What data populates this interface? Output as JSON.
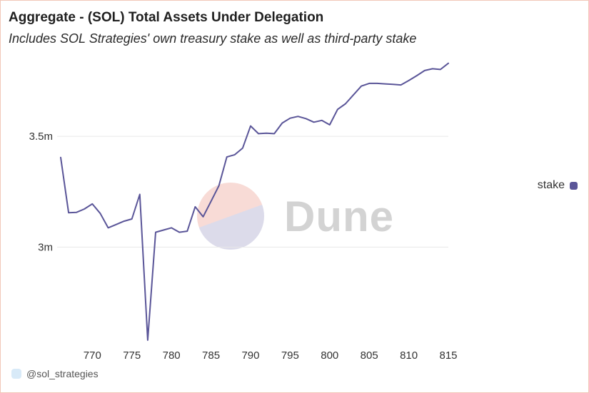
{
  "header": {
    "title": "Aggregate - (SOL) Total Assets Under Delegation",
    "subtitle": "Includes SOL Strategies' own treasury stake as well as third-party stake"
  },
  "watermark": {
    "text": "Dune"
  },
  "footer": {
    "handle": "@sol_strategies"
  },
  "colors": {
    "line": "#5a5598",
    "grid": "#e8e8e8",
    "border": "#f2c8b8"
  },
  "chart_data": {
    "type": "line",
    "title": "Aggregate - (SOL) Total Assets Under Delegation",
    "subtitle": "Includes SOL Strategies' own treasury stake as well as third-party stake",
    "xlabel": "",
    "ylabel": "",
    "xlim": [
      766,
      815
    ],
    "ylim": [
      2570000,
      3800000
    ],
    "x_ticks": [
      770,
      775,
      780,
      785,
      790,
      795,
      800,
      805,
      810,
      815
    ],
    "y_ticks": [
      {
        "value": 3000000,
        "label": "3m"
      },
      {
        "value": 3500000,
        "label": "3.5m"
      }
    ],
    "grid": true,
    "legend_position": "right",
    "series": [
      {
        "name": "stake",
        "color": "#5a5598",
        "x": [
          766,
          767,
          768,
          769,
          770,
          771,
          772,
          773,
          774,
          775,
          776,
          777,
          778,
          779,
          780,
          781,
          782,
          783,
          784,
          785,
          786,
          787,
          788,
          789,
          790,
          791,
          792,
          793,
          794,
          795,
          796,
          797,
          798,
          799,
          800,
          801,
          802,
          803,
          804,
          805,
          806,
          807,
          808,
          809,
          810,
          811,
          812,
          813,
          814,
          815
        ],
        "y": [
          3405000,
          3155000,
          3157000,
          3172000,
          3195000,
          3152000,
          3087000,
          3102000,
          3117000,
          3127000,
          3238000,
          2580000,
          3067000,
          3077000,
          3087000,
          3067000,
          3072000,
          3182000,
          3137000,
          3207000,
          3277000,
          3407000,
          3417000,
          3447000,
          3547000,
          3512000,
          3514000,
          3512000,
          3560000,
          3582000,
          3590000,
          3580000,
          3564000,
          3572000,
          3552000,
          3622000,
          3647000,
          3687000,
          3727000,
          3739000,
          3739000,
          3737000,
          3735000,
          3732000,
          3752000,
          3774000,
          3797000,
          3805000,
          3802000,
          3830000
        ]
      }
    ]
  }
}
